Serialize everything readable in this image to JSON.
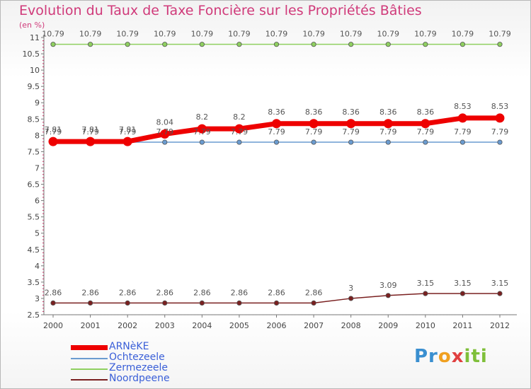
{
  "title": "Evolution du Taux de Taxe Foncière sur les Propriétés Bâties",
  "unit": "(en %)",
  "logo": [
    "Pr",
    "o",
    "x",
    "iti"
  ],
  "chart_data": {
    "type": "line",
    "title": "Evolution du Taux de Taxe Foncière sur les Propriétés Bâties",
    "ylabel": "(en %)",
    "xlabel": "",
    "ylim": [
      2.5,
      11
    ],
    "yticks": [
      2.5,
      3,
      3.5,
      4,
      4.5,
      5,
      5.5,
      6,
      6.5,
      7,
      7.5,
      8,
      8.5,
      9,
      9.5,
      10,
      10.5,
      11
    ],
    "ytick_labels": [
      "2.5",
      "3",
      "3.5",
      "4",
      "4.5",
      "5",
      "5.5",
      "6",
      "6.5",
      "7",
      "7.5",
      "8",
      "8.5",
      "9",
      "9.5",
      "10",
      "10.5",
      "11"
    ],
    "categories": [
      "2000",
      "2001",
      "2002",
      "2003",
      "2004",
      "2005",
      "2006",
      "2007",
      "2008",
      "2009",
      "2010",
      "2011",
      "2012"
    ],
    "series": [
      {
        "name": "ARNèKE",
        "color": "#ee0000",
        "values": [
          7.81,
          7.81,
          7.81,
          8.04,
          8.2,
          8.2,
          8.36,
          8.36,
          8.36,
          8.36,
          8.36,
          8.53,
          8.53
        ],
        "labels": [
          "7.81",
          "7.81",
          "7.81",
          "8.04",
          "8.2",
          "8.2",
          "8.36",
          "8.36",
          "8.36",
          "8.36",
          "8.36",
          "8.53",
          "8.53"
        ]
      },
      {
        "name": "Ochtezeele",
        "color": "#6a9bd0",
        "values": [
          7.79,
          7.79,
          7.79,
          7.79,
          7.79,
          7.79,
          7.79,
          7.79,
          7.79,
          7.79,
          7.79,
          7.79,
          7.79
        ],
        "labels": [
          "7.79",
          "7.79",
          "7.79",
          "7.79",
          "7.79",
          "7.79",
          "7.79",
          "7.79",
          "7.79",
          "7.79",
          "7.79",
          "7.79",
          "7.79"
        ]
      },
      {
        "name": "Zermezeele",
        "color": "#8fd060",
        "values": [
          10.79,
          10.79,
          10.79,
          10.79,
          10.79,
          10.79,
          10.79,
          10.79,
          10.79,
          10.79,
          10.79,
          10.79,
          10.79
        ],
        "labels": [
          "10.79",
          "10.79",
          "10.79",
          "10.79",
          "10.79",
          "10.79",
          "10.79",
          "10.79",
          "10.79",
          "10.79",
          "10.79",
          "10.79",
          "10.79"
        ]
      },
      {
        "name": "Noordpeene",
        "color": "#7a2020",
        "values": [
          2.86,
          2.86,
          2.86,
          2.86,
          2.86,
          2.86,
          2.86,
          2.86,
          3,
          3.09,
          3.15,
          3.15,
          3.15
        ],
        "labels": [
          "2.86",
          "2.86",
          "2.86",
          "2.86",
          "2.86",
          "2.86",
          "2.86",
          "2.86",
          "3",
          "3.09",
          "3.15",
          "3.15",
          "3.15"
        ]
      }
    ],
    "legend_position": "bottom-left",
    "grid": false
  }
}
